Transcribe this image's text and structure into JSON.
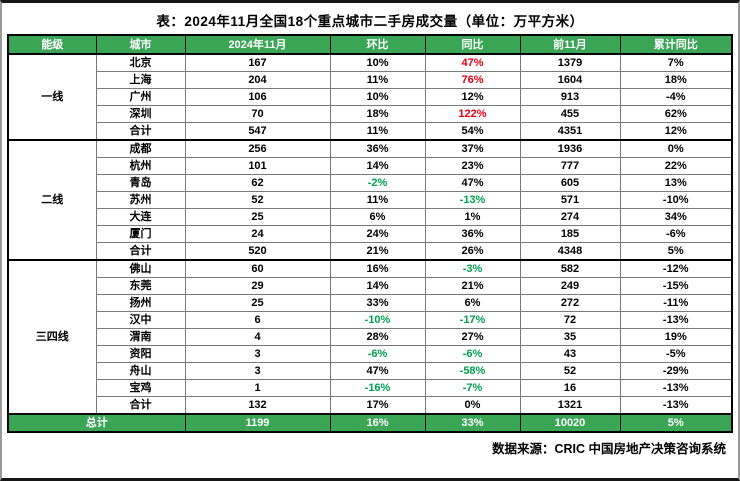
{
  "chart_data": {
    "type": "table",
    "title": "表：2024年11月全国18个重点城市二手房成交量（单位：万平方米）",
    "columns": [
      "能级",
      "城市",
      "2024年11月",
      "环比",
      "同比",
      "前11月",
      "累计同比"
    ],
    "groups": [
      {
        "tier": "一线",
        "rows": [
          {
            "cells": [
              "北京",
              "167",
              "10%",
              "47%",
              "1379",
              "7%"
            ],
            "colors": {
              "3": "red"
            }
          },
          {
            "cells": [
              "上海",
              "204",
              "11%",
              "76%",
              "1604",
              "18%"
            ],
            "colors": {
              "3": "red"
            }
          },
          {
            "cells": [
              "广州",
              "106",
              "10%",
              "12%",
              "913",
              "-4%"
            ]
          },
          {
            "cells": [
              "深圳",
              "70",
              "18%",
              "122%",
              "455",
              "62%"
            ],
            "colors": {
              "3": "red"
            }
          },
          {
            "cells": [
              "合计",
              "547",
              "11%",
              "54%",
              "4351",
              "12%"
            ],
            "is_total": true
          }
        ]
      },
      {
        "tier": "二线",
        "rows": [
          {
            "cells": [
              "成都",
              "256",
              "36%",
              "37%",
              "1936",
              "0%"
            ]
          },
          {
            "cells": [
              "杭州",
              "101",
              "14%",
              "23%",
              "777",
              "22%"
            ]
          },
          {
            "cells": [
              "青岛",
              "62",
              "-2%",
              "47%",
              "605",
              "13%"
            ],
            "colors": {
              "2": "green"
            }
          },
          {
            "cells": [
              "苏州",
              "52",
              "11%",
              "-13%",
              "571",
              "-10%"
            ],
            "colors": {
              "3": "green"
            }
          },
          {
            "cells": [
              "大连",
              "25",
              "6%",
              "1%",
              "274",
              "34%"
            ]
          },
          {
            "cells": [
              "厦门",
              "24",
              "24%",
              "36%",
              "185",
              "-6%"
            ]
          },
          {
            "cells": [
              "合计",
              "520",
              "21%",
              "26%",
              "4348",
              "5%"
            ],
            "is_total": true
          }
        ]
      },
      {
        "tier": "三四线",
        "rows": [
          {
            "cells": [
              "佛山",
              "60",
              "16%",
              "-3%",
              "582",
              "-12%"
            ],
            "colors": {
              "3": "green"
            }
          },
          {
            "cells": [
              "东莞",
              "29",
              "14%",
              "21%",
              "249",
              "-15%"
            ]
          },
          {
            "cells": [
              "扬州",
              "25",
              "33%",
              "6%",
              "272",
              "-11%"
            ]
          },
          {
            "cells": [
              "汉中",
              "6",
              "-10%",
              "-17%",
              "72",
              "-13%"
            ],
            "colors": {
              "2": "green",
              "3": "green"
            }
          },
          {
            "cells": [
              "渭南",
              "4",
              "28%",
              "27%",
              "35",
              "19%"
            ]
          },
          {
            "cells": [
              "资阳",
              "3",
              "-6%",
              "-6%",
              "43",
              "-5%"
            ],
            "colors": {
              "2": "green",
              "3": "green"
            }
          },
          {
            "cells": [
              "舟山",
              "3",
              "47%",
              "-58%",
              "52",
              "-29%"
            ],
            "colors": {
              "3": "green"
            }
          },
          {
            "cells": [
              "宝鸡",
              "1",
              "-16%",
              "-7%",
              "16",
              "-13%"
            ],
            "colors": {
              "2": "green",
              "3": "green"
            }
          },
          {
            "cells": [
              "合计",
              "132",
              "17%",
              "0%",
              "1321",
              "-13%"
            ],
            "is_total": true
          }
        ]
      }
    ],
    "grand_total": {
      "label": "总计",
      "values": [
        "1199",
        "16%",
        "33%",
        "10020",
        "5%"
      ]
    },
    "source": "数据来源：CRIC 中国房地产决策咨询系统",
    "styles": {
      "header_bg": "#3BA556",
      "header_text": "#ffffff",
      "positive_red": "#e60012",
      "negative_green": "#00a050"
    }
  }
}
